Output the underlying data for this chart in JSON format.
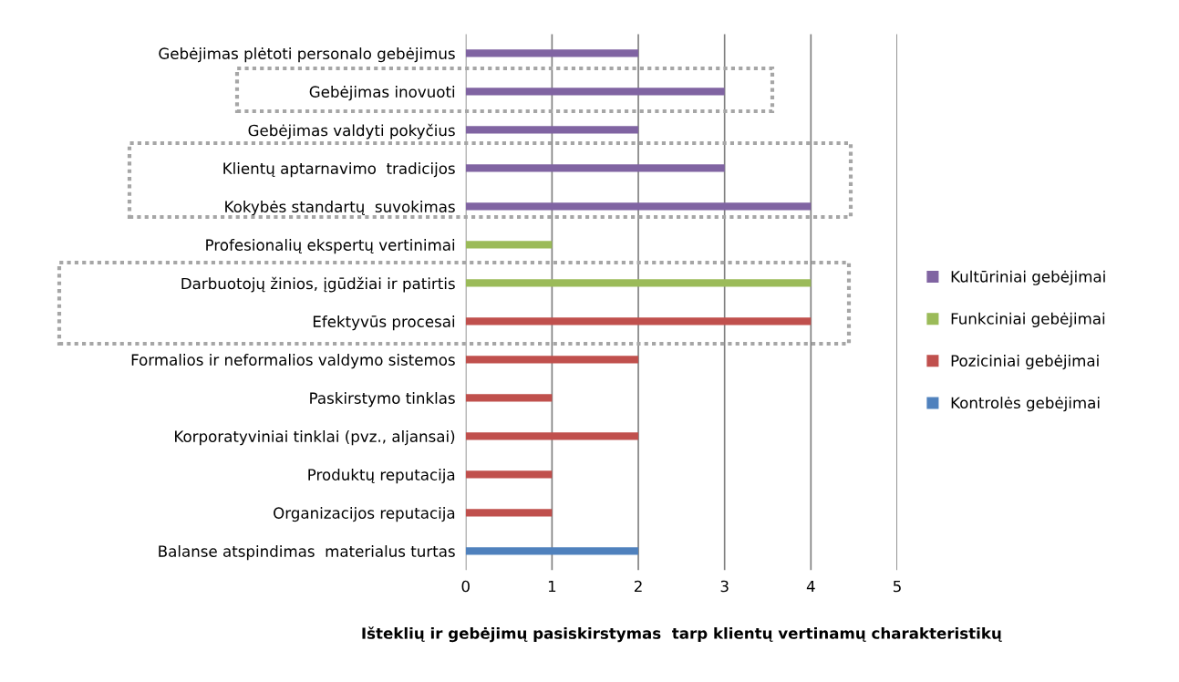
{
  "chart_data": {
    "type": "bar",
    "orientation": "horizontal",
    "stacked": true,
    "xlabel": "Išteklių ir gebėjimų pasiskirstymas  tarp klientų vertinamų charakteristikų",
    "categories": [
      "Gebėjimas plėtoti personalo gebėjimus",
      "Gebėjimas inovuoti",
      "Gebėjimas valdyti pokyčius",
      "Klientų aptarnavimo  tradicijos",
      "Kokybės standartų  suvokimas",
      "Profesionalių ekspertų vertinimai",
      "Darbuotojų žinios, įgūdžiai ir patirtis",
      "Efektyvūs procesai",
      "Formalios ir neformalios valdymo sistemos",
      "Paskirstymo tinklas",
      "Korporatyviniai tinklai (pvz., aljansai)",
      "Produktų reputacija",
      "Organizacijos reputacija",
      "Balanse atspindimas  materialus turtas"
    ],
    "series": [
      {
        "name": "Kultūriniai gebėjimai",
        "color": "#8064a2",
        "values": [
          2,
          3,
          2,
          3,
          4,
          null,
          null,
          null,
          null,
          null,
          null,
          null,
          null,
          null
        ]
      },
      {
        "name": "Funkciniai gebėjimai",
        "color": "#9bbb59",
        "values": [
          null,
          null,
          null,
          null,
          null,
          1,
          4,
          null,
          null,
          null,
          null,
          null,
          null,
          null
        ]
      },
      {
        "name": "Poziciniai gebėjimai",
        "color": "#c0504d",
        "values": [
          null,
          null,
          null,
          null,
          null,
          null,
          null,
          4,
          2,
          1,
          2,
          1,
          1,
          null
        ]
      },
      {
        "name": "Kontrolės gebėjimai",
        "color": "#4f81bd",
        "values": [
          null,
          null,
          null,
          null,
          null,
          null,
          null,
          null,
          null,
          null,
          null,
          null,
          null,
          2
        ]
      }
    ],
    "xlim": [
      0,
      5
    ],
    "xticks": [
      0,
      1,
      2,
      3,
      4,
      5
    ],
    "grid": "x",
    "legend": "right"
  }
}
